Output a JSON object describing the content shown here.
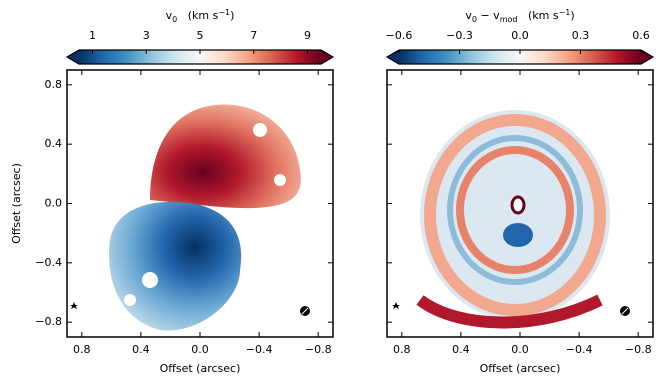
{
  "chart_data": [
    {
      "type": "image",
      "xlabel": "Offset (arcsec)",
      "ylabel": "Offset (arcsec)",
      "ytick_labels": true,
      "xlim": [
        0.9,
        -0.9
      ],
      "ylim": [
        -0.9,
        0.9
      ],
      "xticks": [
        {
          "value": 0.8,
          "label": "0.8"
        },
        {
          "value": 0.4,
          "label": "0.4"
        },
        {
          "value": 0,
          "label": "0.0"
        },
        {
          "value": -0.4,
          "label": "−0.4"
        },
        {
          "value": -0.8,
          "label": "−0.8"
        }
      ],
      "yticks": [
        {
          "value": 0.8,
          "label": "0.8"
        },
        {
          "value": 0.4,
          "label": "0.4"
        },
        {
          "value": 0,
          "label": "0.0"
        },
        {
          "value": -0.4,
          "label": "−0.4"
        },
        {
          "value": -0.8,
          "label": "−0.8"
        }
      ],
      "colorbar": {
        "label": [
          {
            "text": "v"
          },
          {
            "text": "0",
            "sub": true
          },
          {
            "text": "   (km s"
          },
          {
            "text": "−1",
            "sup": true
          },
          {
            "text": ")"
          }
        ],
        "clim": [
          0.5,
          9.5
        ],
        "ticks": [
          1,
          3,
          5,
          7,
          9
        ],
        "colormap": [
          "#053061",
          "#2166ac",
          "#4393c3",
          "#92c5de",
          "#d1e5f0",
          "#f7f7f7",
          "#fddbc7",
          "#f4a582",
          "#d6604d",
          "#b2182b",
          "#67001f"
        ]
      }
    },
    {
      "type": "image",
      "xlabel": "Offset (arcsec)",
      "ytick_labels": false,
      "xlim": [
        0.9,
        -0.9
      ],
      "ylim": [
        -0.9,
        0.9
      ],
      "xticks": [
        {
          "value": 0.8,
          "label": "0.8"
        },
        {
          "value": 0.4,
          "label": "0.4"
        },
        {
          "value": 0,
          "label": "0.0"
        },
        {
          "value": -0.4,
          "label": "−0.4"
        },
        {
          "value": -0.8,
          "label": "−0.8"
        }
      ],
      "yticks": [
        {
          "value": 0.8,
          "label": "0.8"
        },
        {
          "value": 0.4,
          "label": "0.4"
        },
        {
          "value": 0,
          "label": "0.0"
        },
        {
          "value": -0.4,
          "label": "−0.4"
        },
        {
          "value": -0.8,
          "label": "−0.8"
        }
      ],
      "colorbar": {
        "label": [
          {
            "text": "v"
          },
          {
            "text": "0",
            "sub": true
          },
          {
            "text": " − v"
          },
          {
            "text": "mod",
            "sub": true
          },
          {
            "text": "   (km s"
          },
          {
            "text": "−1",
            "sup": true
          },
          {
            "text": ")"
          }
        ],
        "clim": [
          -0.6,
          0.6
        ],
        "ticks": [
          {
            "value": -0.6,
            "label": "−0.6"
          },
          {
            "value": -0.3,
            "label": "−0.3"
          },
          {
            "value": 0,
            "label": "0.0"
          },
          {
            "value": 0.3,
            "label": "0.3"
          },
          {
            "value": 0.6,
            "label": "0.6"
          }
        ],
        "colormap": [
          "#053061",
          "#2166ac",
          "#4393c3",
          "#92c5de",
          "#d1e5f0",
          "#f7f7f7",
          "#fddbc7",
          "#f4a582",
          "#d6604d",
          "#b2182b",
          "#67001f"
        ]
      }
    }
  ]
}
